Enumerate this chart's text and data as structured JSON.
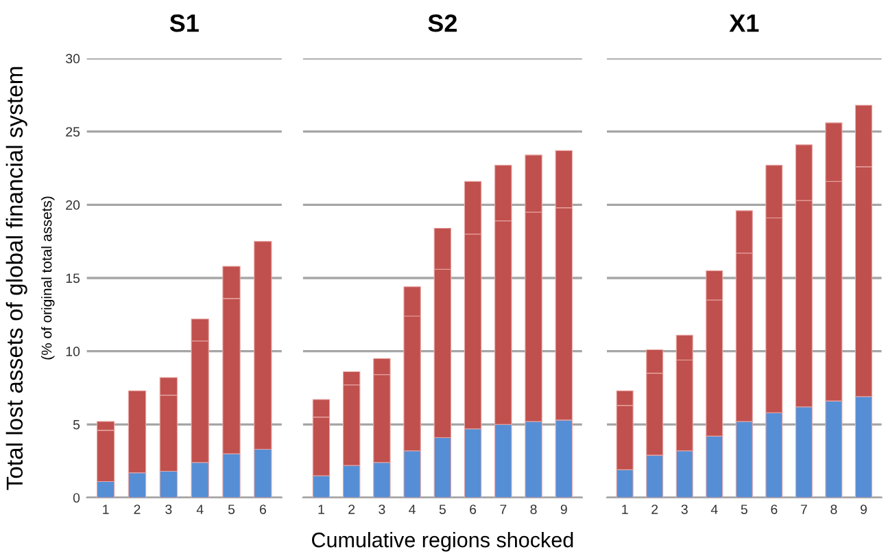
{
  "chart_data": [
    {
      "type": "bar",
      "title": "S1",
      "ylabel": "Total lost assets of global financial system",
      "annotations": [
        "(% of original total assets)"
      ],
      "categories": [
        "1",
        "2",
        "3",
        "4",
        "5",
        "6"
      ],
      "stacked": true,
      "ylim": [
        0,
        30
      ],
      "yticks": [
        0,
        5,
        10,
        15,
        20,
        25,
        30
      ],
      "grid": "y",
      "series": [
        {
          "color": "#558ed5",
          "values": [
            1.1,
            1.7,
            1.8,
            2.4,
            3.0,
            3.3
          ]
        },
        {
          "color": "#c0504d",
          "values": [
            3.5,
            5.6,
            5.2,
            8.3,
            10.6,
            14.2
          ]
        },
        {
          "color": "#c0504d",
          "values": [
            0.6,
            null,
            1.2,
            1.5,
            2.2,
            null
          ]
        }
      ]
    },
    {
      "type": "bar",
      "title": "S2",
      "xlabel": "Cumulative regions shocked",
      "categories": [
        "1",
        "2",
        "3",
        "4",
        "5",
        "6",
        "7",
        "8",
        "9"
      ],
      "stacked": true,
      "ylim": [
        0,
        30
      ],
      "yticks": [
        0,
        5,
        10,
        15,
        20,
        25,
        30
      ],
      "grid": "y",
      "tick_labels": "x",
      "series": [
        {
          "color": "#558ed5",
          "values": [
            1.5,
            2.2,
            2.4,
            3.2,
            4.1,
            4.7,
            5.0,
            5.2,
            5.3
          ]
        },
        {
          "color": "#c0504d",
          "values": [
            4.0,
            5.5,
            6.0,
            9.2,
            11.5,
            13.3,
            13.9,
            14.3,
            14.5
          ]
        },
        {
          "color": "#c0504d",
          "values": [
            1.2,
            0.9,
            1.1,
            2.0,
            2.8,
            3.6,
            3.8,
            3.9,
            3.9
          ]
        }
      ]
    },
    {
      "type": "bar",
      "title": "X1",
      "categories": [
        "1",
        "2",
        "3",
        "4",
        "5",
        "6",
        "7",
        "8",
        "9"
      ],
      "stacked": true,
      "ylim": [
        0,
        30
      ],
      "yticks": [
        0,
        5,
        10,
        15,
        20,
        25,
        30
      ],
      "grid": "y",
      "tick_labels": "x",
      "series": [
        {
          "color": "#558ed5",
          "values": [
            1.9,
            2.9,
            3.2,
            4.2,
            5.2,
            5.8,
            6.2,
            6.6,
            6.9
          ]
        },
        {
          "color": "#c0504d",
          "values": [
            4.4,
            5.6,
            6.2,
            9.3,
            11.5,
            13.3,
            14.1,
            15.0,
            15.7
          ]
        },
        {
          "color": "#c0504d",
          "values": [
            1.0,
            1.6,
            1.7,
            2.0,
            2.9,
            3.6,
            3.8,
            4.0,
            4.2
          ]
        }
      ]
    }
  ]
}
